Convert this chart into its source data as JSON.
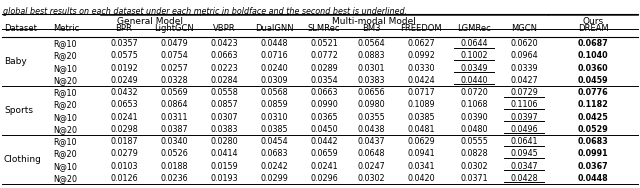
{
  "caption": "global best results on each dataset under each metric in boldface and the second best is underlined.",
  "headers": [
    "Dataset",
    "Metric",
    "BPR",
    "LightGCN",
    "VBPR",
    "DualGNN",
    "SLMRec",
    "BM3",
    "FREEDOM",
    "LGMRec",
    "MGCN",
    "DREAM"
  ],
  "datasets": [
    "Baby",
    "Sports",
    "Clothing"
  ],
  "metrics": [
    "R@10",
    "R@20",
    "N@10",
    "N@20"
  ],
  "data": {
    "Baby": {
      "R@10": [
        "0.0357",
        "0.0479",
        "0.0423",
        "0.0448",
        "0.0521",
        "0.0564",
        "0.0627",
        "0.0644",
        "0.0620",
        "0.0687"
      ],
      "R@20": [
        "0.0575",
        "0.0754",
        "0.0663",
        "0.0716",
        "0.0772",
        "0.0883",
        "0.0992",
        "0.1002",
        "0.0964",
        "0.1040"
      ],
      "N@10": [
        "0.0192",
        "0.0257",
        "0.0223",
        "0.0240",
        "0.0289",
        "0.0301",
        "0.0330",
        "0.0349",
        "0.0339",
        "0.0360"
      ],
      "N@20": [
        "0.0249",
        "0.0328",
        "0.0284",
        "0.0309",
        "0.0354",
        "0.0383",
        "0.0424",
        "0.0440",
        "0.0427",
        "0.0459"
      ]
    },
    "Sports": {
      "R@10": [
        "0.0432",
        "0.0569",
        "0.0558",
        "0.0568",
        "0.0663",
        "0.0656",
        "0.0717",
        "0.0720",
        "0.0729",
        "0.0776"
      ],
      "R@20": [
        "0.0653",
        "0.0864",
        "0.0857",
        "0.0859",
        "0.0990",
        "0.0980",
        "0.1089",
        "0.1068",
        "0.1106",
        "0.1182"
      ],
      "N@10": [
        "0.0241",
        "0.0311",
        "0.0307",
        "0.0310",
        "0.0365",
        "0.0355",
        "0.0385",
        "0.0390",
        "0.0397",
        "0.0425"
      ],
      "N@20": [
        "0.0298",
        "0.0387",
        "0.0383",
        "0.0385",
        "0.0450",
        "0.0438",
        "0.0481",
        "0.0480",
        "0.0496",
        "0.0529"
      ]
    },
    "Clothing": {
      "R@10": [
        "0.0187",
        "0.0340",
        "0.0280",
        "0.0454",
        "0.0442",
        "0.0437",
        "0.0629",
        "0.0555",
        "0.0641",
        "0.0683"
      ],
      "R@20": [
        "0.0279",
        "0.0526",
        "0.0414",
        "0.0683",
        "0.0659",
        "0.0648",
        "0.0941",
        "0.0828",
        "0.0945",
        "0.0991"
      ],
      "N@10": [
        "0.0103",
        "0.0188",
        "0.0159",
        "0.0242",
        "0.0241",
        "0.0247",
        "0.0341",
        "0.0302",
        "0.0347",
        "0.0367"
      ],
      "N@20": [
        "0.0126",
        "0.0236",
        "0.0193",
        "0.0299",
        "0.0296",
        "0.0302",
        "0.0420",
        "0.0371",
        "0.0428",
        "0.0448"
      ]
    }
  },
  "underlined": {
    "Baby": {
      "R@10": 7,
      "R@20": 7,
      "N@10": 7,
      "N@20": 7
    },
    "Sports": {
      "R@10": 8,
      "R@20": 8,
      "N@10": 8,
      "N@20": 8
    },
    "Clothing": {
      "R@10": 8,
      "R@20": 8,
      "N@10": 8,
      "N@20": 8
    }
  }
}
